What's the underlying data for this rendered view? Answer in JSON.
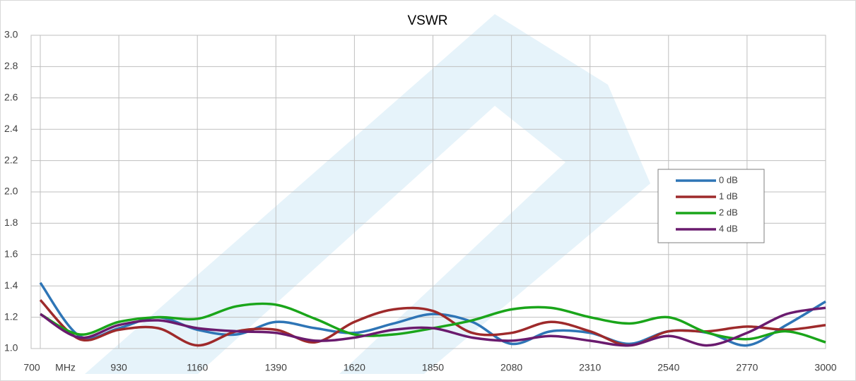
{
  "chart_data": {
    "type": "line",
    "title": "VSWR",
    "x_unit_label": "MHz",
    "x": [
      700,
      815,
      930,
      1045,
      1160,
      1275,
      1390,
      1505,
      1620,
      1735,
      1850,
      1965,
      2080,
      2195,
      2310,
      2425,
      2540,
      2655,
      2770,
      2885,
      3000
    ],
    "xlim": [
      700,
      3000
    ],
    "xticks": [
      700,
      930,
      1160,
      1390,
      1620,
      1850,
      2080,
      2310,
      2540,
      2770,
      3000
    ],
    "ylim": [
      1,
      3
    ],
    "yticks": [
      {
        "value": 1,
        "label": "1.0"
      },
      1.2,
      1.4,
      1.6,
      1.8,
      {
        "value": 2,
        "label": "2.0"
      },
      2.2,
      2.4,
      2.6,
      2.8,
      {
        "value": 3,
        "label": "3.0"
      }
    ],
    "grid": true,
    "legend": "right",
    "series": [
      {
        "name": "0 dB",
        "color": "#2e75b6",
        "values": [
          1.42,
          1.08,
          1.13,
          1.2,
          1.12,
          1.09,
          1.17,
          1.13,
          1.1,
          1.16,
          1.22,
          1.17,
          1.03,
          1.11,
          1.1,
          1.03,
          1.11,
          1.1,
          1.02,
          1.15,
          1.3
        ]
      },
      {
        "name": "1 dB",
        "color": "#9e2a2b",
        "values": [
          1.31,
          1.06,
          1.12,
          1.13,
          1.02,
          1.11,
          1.12,
          1.04,
          1.17,
          1.25,
          1.24,
          1.1,
          1.1,
          1.17,
          1.11,
          1.02,
          1.11,
          1.11,
          1.14,
          1.12,
          1.15
        ]
      },
      {
        "name": "2 dB",
        "color": "#1aa51a",
        "values": [
          1.22,
          1.09,
          1.17,
          1.2,
          1.19,
          1.27,
          1.28,
          1.19,
          1.09,
          1.09,
          1.13,
          1.18,
          1.25,
          1.26,
          1.2,
          1.16,
          1.2,
          1.1,
          1.06,
          1.11,
          1.04
        ]
      },
      {
        "name": "4 dB",
        "color": "#6a1b6e",
        "values": [
          1.22,
          1.07,
          1.15,
          1.18,
          1.13,
          1.11,
          1.1,
          1.05,
          1.07,
          1.12,
          1.13,
          1.07,
          1.05,
          1.08,
          1.05,
          1.02,
          1.08,
          1.02,
          1.1,
          1.22,
          1.26
        ]
      }
    ]
  }
}
